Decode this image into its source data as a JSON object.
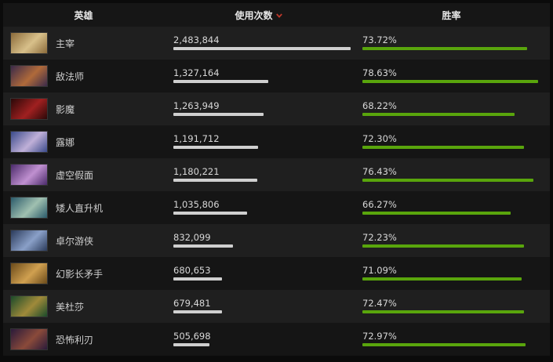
{
  "headers": {
    "hero": "英雄",
    "uses": "使用次数",
    "winrate": "胜率"
  },
  "icons": {
    "sort": "sort-descending-icon"
  },
  "colors": {
    "sort_arrow": "#c0392b",
    "uses_bar": "#cfcfcf",
    "win_bar": "#59a50c"
  },
  "rows": [
    {
      "name": "主宰",
      "uses": "2,483,844",
      "uses_fraction": 1.0,
      "winrate": "73.72%",
      "win_fraction": 0.9376,
      "portrait": [
        "#8a6a3a",
        "#d8c08a"
      ]
    },
    {
      "name": "敌法师",
      "uses": "1,327,164",
      "uses_fraction": 0.5343,
      "winrate": "78.63%",
      "win_fraction": 1.0,
      "portrait": [
        "#3a2a4a",
        "#b06a3a"
      ]
    },
    {
      "name": "影魔",
      "uses": "1,263,949",
      "uses_fraction": 0.5089,
      "winrate": "68.22%",
      "win_fraction": 0.8676,
      "portrait": [
        "#2a0808",
        "#a02020"
      ]
    },
    {
      "name": "露娜",
      "uses": "1,191,712",
      "uses_fraction": 0.4798,
      "winrate": "72.30%",
      "win_fraction": 0.9195,
      "portrait": [
        "#3a4a8a",
        "#c0b0d8"
      ]
    },
    {
      "name": "虚空假面",
      "uses": "1,180,221",
      "uses_fraction": 0.4752,
      "winrate": "76.43%",
      "win_fraction": 0.972,
      "portrait": [
        "#4a2a6a",
        "#c090d0"
      ]
    },
    {
      "name": "矮人直升机",
      "uses": "1,035,806",
      "uses_fraction": 0.417,
      "winrate": "66.27%",
      "win_fraction": 0.8428,
      "portrait": [
        "#2a5a6a",
        "#a0c0b0"
      ]
    },
    {
      "name": "卓尔游侠",
      "uses": "832,099",
      "uses_fraction": 0.335,
      "winrate": "72.23%",
      "win_fraction": 0.9186,
      "portrait": [
        "#2a3a5a",
        "#8aa0c8"
      ]
    },
    {
      "name": "幻影长矛手",
      "uses": "680,653",
      "uses_fraction": 0.274,
      "winrate": "71.09%",
      "win_fraction": 0.9041,
      "portrait": [
        "#6a4a1a",
        "#d0a050"
      ]
    },
    {
      "name": "美杜莎",
      "uses": "679,481",
      "uses_fraction": 0.2736,
      "winrate": "72.47%",
      "win_fraction": 0.9217,
      "portrait": [
        "#1a4a2a",
        "#a08a3a"
      ]
    },
    {
      "name": "恐怖利刃",
      "uses": "505,698",
      "uses_fraction": 0.2036,
      "winrate": "72.97%",
      "win_fraction": 0.928,
      "portrait": [
        "#2a1a3a",
        "#8a4a3a"
      ]
    }
  ]
}
